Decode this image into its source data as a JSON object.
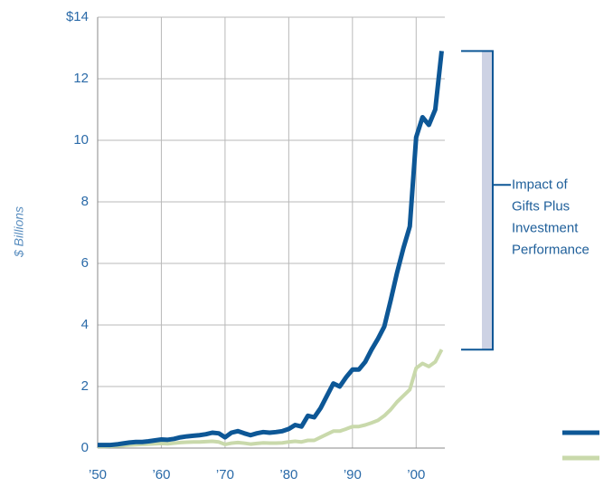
{
  "chart_data": {
    "type": "line",
    "y_label": "$ Billions",
    "annotation": [
      "Impact of",
      "Gifts Plus",
      "Investment",
      "Performance"
    ],
    "x": [
      1950,
      1951,
      1952,
      1953,
      1954,
      1955,
      1956,
      1957,
      1958,
      1959,
      1960,
      1961,
      1962,
      1963,
      1964,
      1965,
      1966,
      1967,
      1968,
      1969,
      1970,
      1971,
      1972,
      1973,
      1974,
      1975,
      1976,
      1977,
      1978,
      1979,
      1980,
      1981,
      1982,
      1983,
      1984,
      1985,
      1986,
      1987,
      1988,
      1989,
      1990,
      1991,
      1992,
      1993,
      1994,
      1995,
      1996,
      1997,
      1998,
      1999,
      2000,
      2001,
      2002,
      2003,
      2004
    ],
    "series": [
      {
        "color": "#0d5796",
        "values": [
          0.1,
          0.1,
          0.1,
          0.12,
          0.15,
          0.18,
          0.2,
          0.2,
          0.22,
          0.25,
          0.28,
          0.27,
          0.3,
          0.35,
          0.38,
          0.4,
          0.42,
          0.45,
          0.5,
          0.48,
          0.35,
          0.5,
          0.55,
          0.48,
          0.42,
          0.48,
          0.52,
          0.5,
          0.52,
          0.55,
          0.62,
          0.75,
          0.7,
          1.05,
          1.0,
          1.3,
          1.7,
          2.1,
          2.0,
          2.3,
          2.55,
          2.55,
          2.8,
          3.2,
          3.55,
          3.95,
          4.8,
          5.7,
          6.5,
          7.2,
          10.1,
          10.75,
          10.5,
          11.0,
          12.9
        ]
      },
      {
        "color": "#c9d9ab",
        "values": [
          0.05,
          0.05,
          0.06,
          0.07,
          0.08,
          0.1,
          0.11,
          0.12,
          0.13,
          0.14,
          0.15,
          0.14,
          0.16,
          0.18,
          0.19,
          0.2,
          0.2,
          0.21,
          0.22,
          0.2,
          0.12,
          0.16,
          0.18,
          0.16,
          0.13,
          0.15,
          0.17,
          0.16,
          0.16,
          0.17,
          0.2,
          0.22,
          0.2,
          0.25,
          0.25,
          0.35,
          0.45,
          0.55,
          0.55,
          0.62,
          0.7,
          0.7,
          0.75,
          0.82,
          0.9,
          1.05,
          1.25,
          1.5,
          1.7,
          1.9,
          2.6,
          2.75,
          2.65,
          2.8,
          3.2
        ]
      }
    ],
    "xlim": [
      1950,
      2004.5
    ],
    "ylim": [
      0,
      14
    ],
    "xticks": [
      {
        "value": 1950,
        "label": "’50"
      },
      {
        "value": 1960,
        "label": "’60"
      },
      {
        "value": 1970,
        "label": "’70"
      },
      {
        "value": 1980,
        "label": "’80"
      },
      {
        "value": 1990,
        "label": "’90"
      },
      {
        "value": 2000,
        "label": "’00"
      }
    ],
    "yticks": [
      0,
      2,
      4,
      6,
      8,
      10,
      12,
      {
        "value": 14,
        "label": "$14"
      }
    ],
    "grid": true
  }
}
